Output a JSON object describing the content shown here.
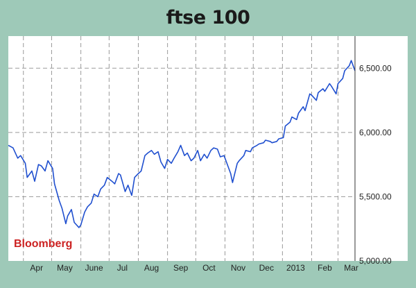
{
  "chart_data": {
    "type": "line",
    "title": "ftse 100",
    "source": "Bloomberg",
    "xlabel": "",
    "ylabel": "",
    "x_tick_labels": [
      "Apr",
      "May",
      "June",
      "Jul",
      "Aug",
      "Sep",
      "Oct",
      "Nov",
      "Dec",
      "2013",
      "Feb",
      "Mar"
    ],
    "y_ticks": [
      "5,000.00",
      "5,500.00",
      "6,000.00",
      "6,500.00"
    ],
    "ylim": [
      5000,
      6750
    ],
    "x_range": [
      "2012-03-16",
      "2013-03-19"
    ],
    "grid": true,
    "axis_position": "right",
    "series": [
      {
        "color": "#1f4fcf",
        "x": [
          "2012-03-16",
          "2012-03-21",
          "2012-03-26",
          "2012-03-29",
          "2012-04-03",
          "2012-04-05",
          "2012-04-10",
          "2012-04-13",
          "2012-04-17",
          "2012-04-20",
          "2012-04-24",
          "2012-04-27",
          "2012-05-02",
          "2012-05-04",
          "2012-05-09",
          "2012-05-12",
          "2012-05-16",
          "2012-05-18",
          "2012-05-22",
          "2012-05-25",
          "2012-05-30",
          "2012-06-01",
          "2012-06-05",
          "2012-06-08",
          "2012-06-12",
          "2012-06-15",
          "2012-06-19",
          "2012-06-22",
          "2012-06-26",
          "2012-06-29",
          "2012-07-04",
          "2012-07-07",
          "2012-07-11",
          "2012-07-13",
          "2012-07-18",
          "2012-07-21",
          "2012-07-25",
          "2012-07-28",
          "2012-08-01",
          "2012-08-04",
          "2012-08-08",
          "2012-08-11",
          "2012-08-15",
          "2012-08-18",
          "2012-08-22",
          "2012-08-25",
          "2012-08-29",
          "2012-09-01",
          "2012-09-05",
          "2012-09-08",
          "2012-09-12",
          "2012-09-15",
          "2012-09-19",
          "2012-09-22",
          "2012-09-26",
          "2012-09-29",
          "2012-10-03",
          "2012-10-06",
          "2012-10-10",
          "2012-10-13",
          "2012-10-17",
          "2012-10-20",
          "2012-10-24",
          "2012-10-27",
          "2012-10-31",
          "2012-11-02",
          "2012-11-07",
          "2012-11-09",
          "2012-11-14",
          "2012-11-16",
          "2012-11-21",
          "2012-11-23",
          "2012-11-28",
          "2012-11-30",
          "2012-12-05",
          "2012-12-07",
          "2012-12-12",
          "2012-12-14",
          "2012-12-19",
          "2012-12-21",
          "2012-12-26",
          "2012-12-28",
          "2013-01-02",
          "2013-01-04",
          "2013-01-09",
          "2013-01-11",
          "2013-01-16",
          "2013-01-18",
          "2013-01-23",
          "2013-01-25",
          "2013-01-30",
          "2013-02-01",
          "2013-02-06",
          "2013-02-08",
          "2013-02-13",
          "2013-02-15",
          "2013-02-20",
          "2013-02-22",
          "2013-02-27",
          "2013-03-01",
          "2013-03-06",
          "2013-03-08",
          "2013-03-13",
          "2013-03-15",
          "2013-03-19"
        ],
        "values": [
          5900,
          5880,
          5800,
          5820,
          5760,
          5650,
          5700,
          5620,
          5750,
          5740,
          5700,
          5780,
          5720,
          5600,
          5470,
          5410,
          5290,
          5350,
          5400,
          5300,
          5260,
          5280,
          5380,
          5420,
          5450,
          5520,
          5500,
          5560,
          5590,
          5650,
          5620,
          5600,
          5680,
          5670,
          5540,
          5590,
          5510,
          5650,
          5680,
          5700,
          5820,
          5840,
          5860,
          5830,
          5850,
          5770,
          5720,
          5790,
          5760,
          5800,
          5850,
          5900,
          5820,
          5840,
          5780,
          5800,
          5860,
          5780,
          5830,
          5800,
          5860,
          5880,
          5870,
          5810,
          5820,
          5780,
          5680,
          5610,
          5760,
          5780,
          5820,
          5860,
          5850,
          5880,
          5900,
          5910,
          5920,
          5940,
          5930,
          5920,
          5930,
          5950,
          5960,
          6050,
          6080,
          6120,
          6100,
          6150,
          6200,
          6170,
          6300,
          6290,
          6250,
          6310,
          6340,
          6320,
          6380,
          6360,
          6300,
          6380,
          6420,
          6480,
          6520,
          6560,
          6480
        ]
      }
    ]
  }
}
